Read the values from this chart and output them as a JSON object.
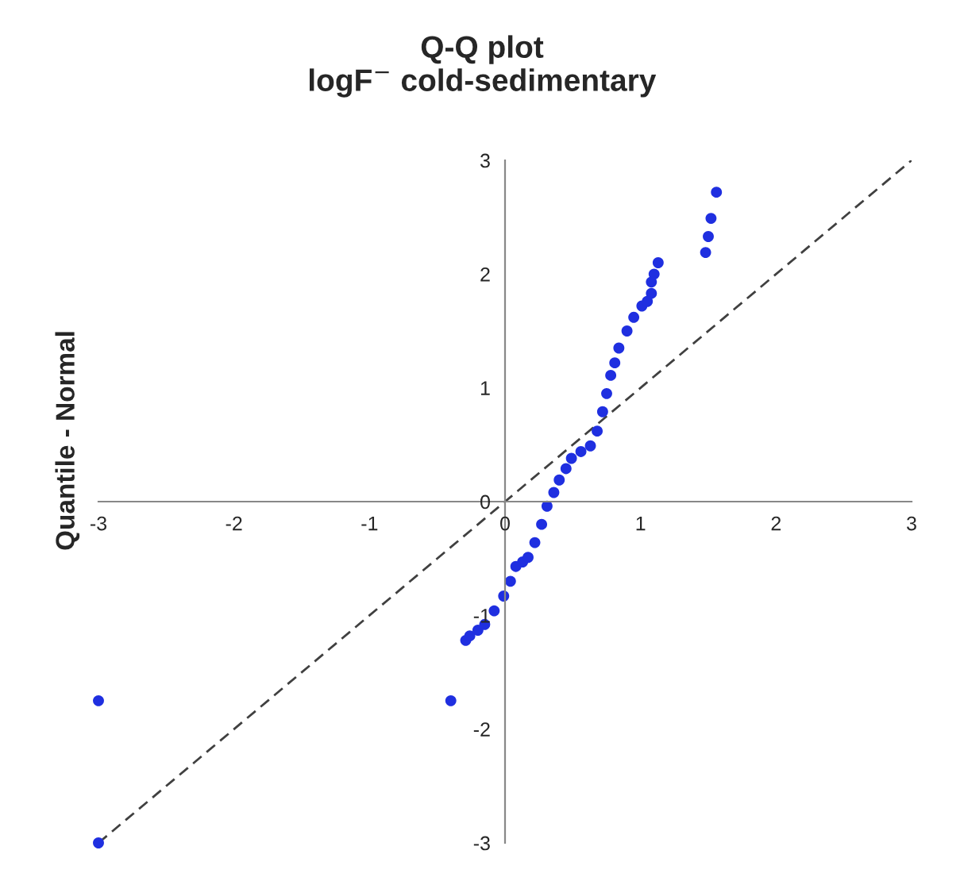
{
  "chart_data": {
    "type": "scatter",
    "title": "Q-Q plot\nlogF$^{−}$ cold-sedimentary",
    "ylabel": "Quantile - Normal",
    "xlim": [
      -3,
      3
    ],
    "ylim": [
      -3,
      3
    ],
    "xticks": [
      -3,
      -2,
      -1,
      0,
      1,
      2,
      3
    ],
    "yticks": [
      -3,
      -2,
      -1,
      0,
      1,
      2,
      3
    ],
    "grid": false,
    "legend": false,
    "marker": "circle",
    "series": [
      {
        "color": "#1f2fe0",
        "x": [
          -3,
          -3,
          -0.4,
          -0.29,
          -0.26,
          -0.2,
          -0.15,
          -0.08,
          -0.01,
          0.04,
          0.08,
          0.13,
          0.17,
          0.22,
          0.27,
          0.31,
          0.36,
          0.4,
          0.45,
          0.49,
          0.56,
          0.63,
          0.68,
          0.72,
          0.75,
          0.78,
          0.81,
          0.84,
          0.9,
          0.95,
          1.01,
          1.05,
          1.08,
          1.08,
          1.1,
          1.13,
          1.48,
          1.5,
          1.52,
          1.56
        ],
        "values": [
          -3,
          -1.75,
          -1.75,
          -1.22,
          -1.18,
          -1.13,
          -1.08,
          -0.96,
          -0.83,
          -0.7,
          -0.57,
          -0.53,
          -0.49,
          -0.36,
          -0.2,
          -0.04,
          0.08,
          0.19,
          0.29,
          0.38,
          0.44,
          0.49,
          0.62,
          0.79,
          0.95,
          1.11,
          1.22,
          1.35,
          1.5,
          1.62,
          1.72,
          1.76,
          1.83,
          1.93,
          2.0,
          2.1,
          2.19,
          2.33,
          2.49,
          2.72
        ]
      },
      {
        "type": "line",
        "color": "#404040",
        "line_style": "dashed",
        "marker": "none",
        "x": [
          -3,
          3
        ],
        "values": [
          -3,
          3
        ]
      }
    ]
  }
}
